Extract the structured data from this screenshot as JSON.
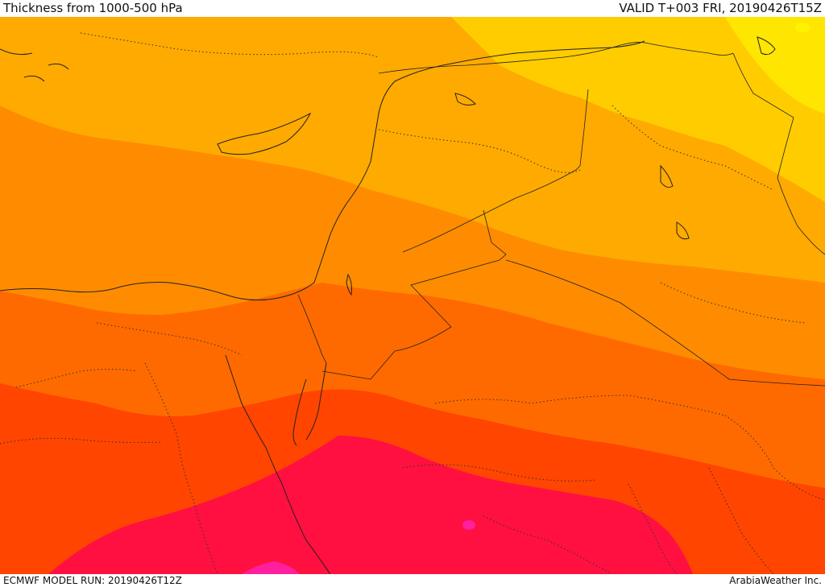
{
  "header": {
    "title": "Thickness from 1000-500 hPa",
    "valid": "VALID T+003 FRI, 20190426T15Z"
  },
  "footer": {
    "model_run": "ECMWF MODEL RUN: 20190426T12Z",
    "credit": "ArabiaWeather Inc."
  },
  "map": {
    "field": "1000-500 hPa thickness",
    "palette": [
      "#ffe600",
      "#ffcc00",
      "#ffaa00",
      "#ff8c00",
      "#ff6a00",
      "#ff4500",
      "#ff1040",
      "#ff20a0"
    ]
  }
}
